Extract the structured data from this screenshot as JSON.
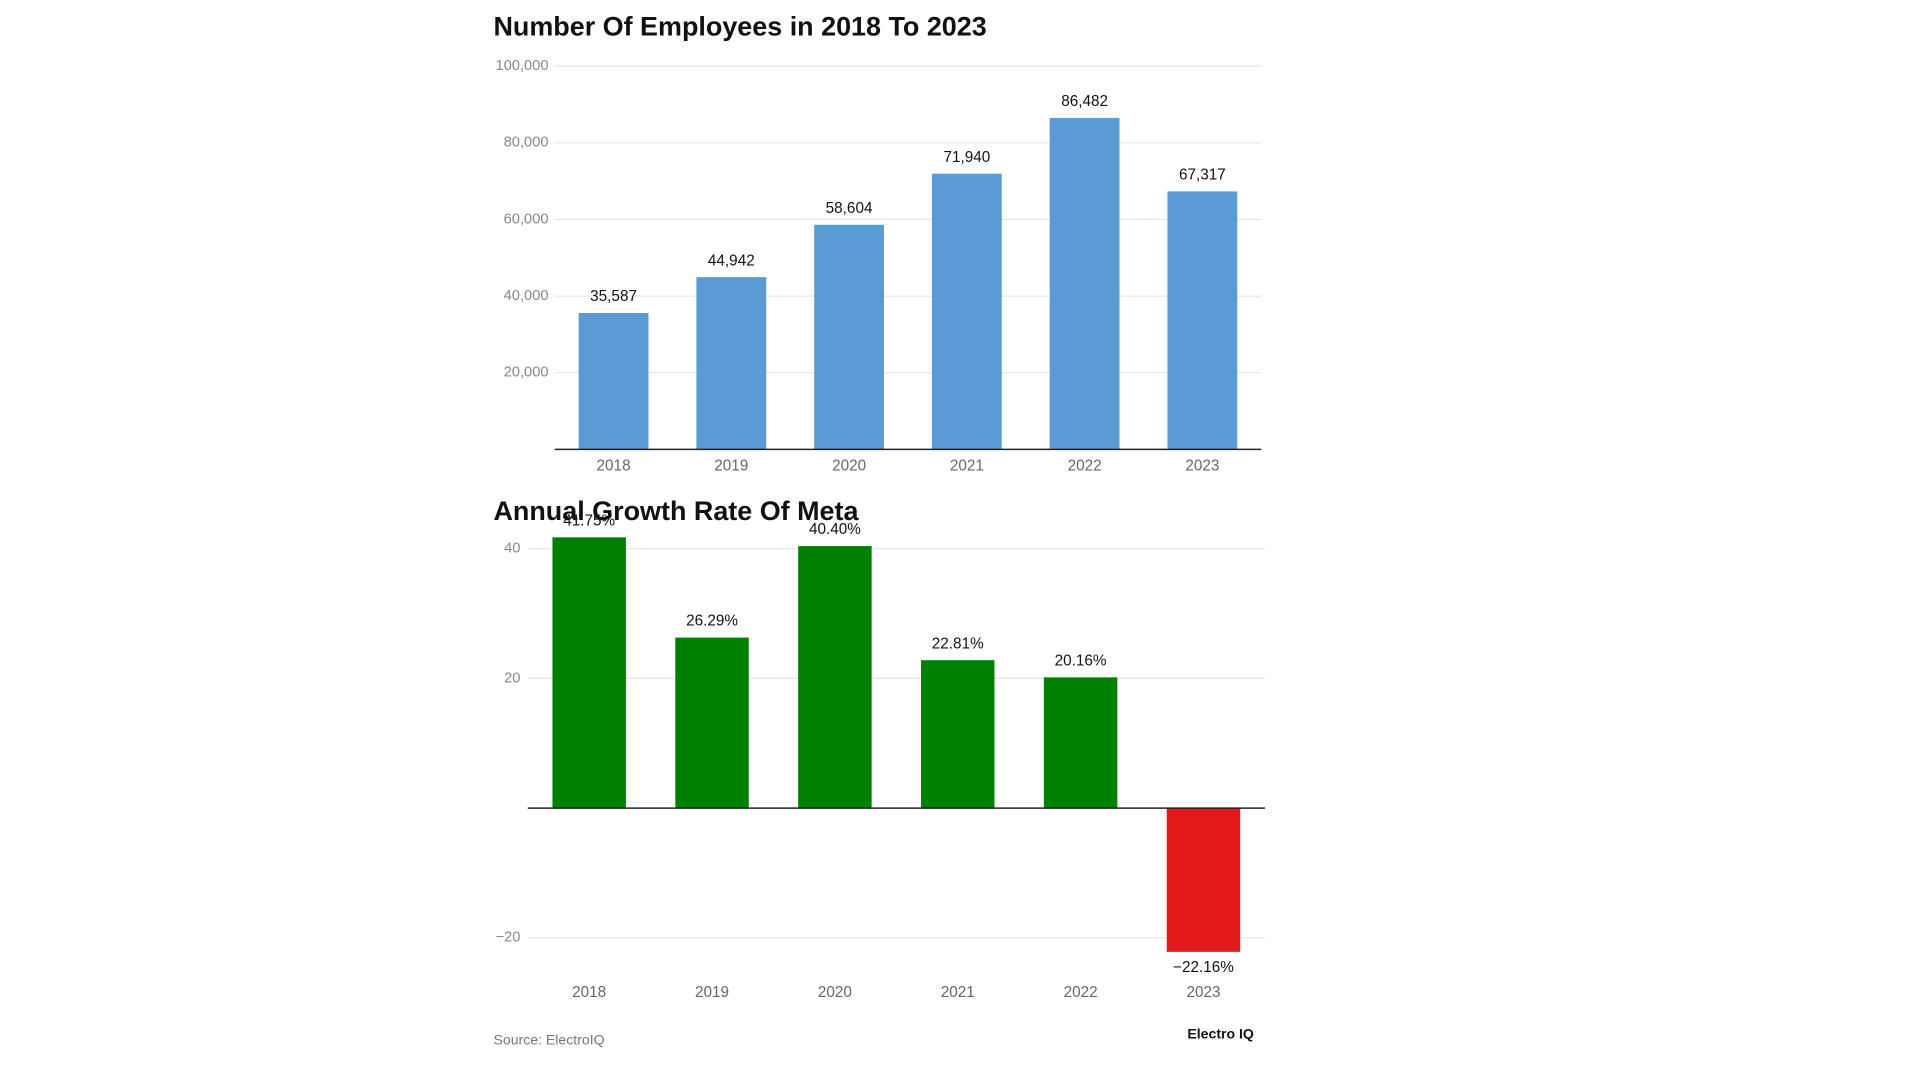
{
  "chart_data": [
    {
      "type": "bar",
      "title": "Number Of Employees in 2018 To 2023",
      "categories": [
        "2018",
        "2019",
        "2020",
        "2021",
        "2022",
        "2023"
      ],
      "values": [
        35587,
        44942,
        58604,
        71940,
        86482,
        67317
      ],
      "value_labels": [
        "35,587",
        "44,942",
        "58,604",
        "71,940",
        "86,482",
        "67,317"
      ],
      "color": "#5b9bd5",
      "ylim": [
        0,
        100000
      ],
      "yticks": [
        {
          "value": 20000,
          "label": "20,000"
        },
        {
          "value": 40000,
          "label": "40,000"
        },
        {
          "value": 60000,
          "label": "60,000"
        },
        {
          "value": 80000,
          "label": "80,000"
        },
        {
          "value": 100000,
          "label": "100,000"
        }
      ],
      "grid": true
    },
    {
      "type": "bar",
      "title": "Annual Growth Rate Of Meta",
      "categories": [
        "2018",
        "2019",
        "2020",
        "2021",
        "2022",
        "2023"
      ],
      "values": [
        41.75,
        26.29,
        40.4,
        22.81,
        20.16,
        -22.16
      ],
      "value_labels": [
        "41.75%",
        "26.29%",
        "40.40%",
        "22.81%",
        "20.16%",
        "−22.16%"
      ],
      "colors": [
        "#008000",
        "#008000",
        "#008000",
        "#008000",
        "#008000",
        "#e31a1c"
      ],
      "ylim": [
        -25,
        45
      ],
      "yticks": [
        {
          "value": -20,
          "label": "−20"
        },
        20,
        40
      ],
      "grid": true
    }
  ],
  "footer": {
    "source": "Source: ElectroIQ",
    "brand": "Electro IQ"
  }
}
